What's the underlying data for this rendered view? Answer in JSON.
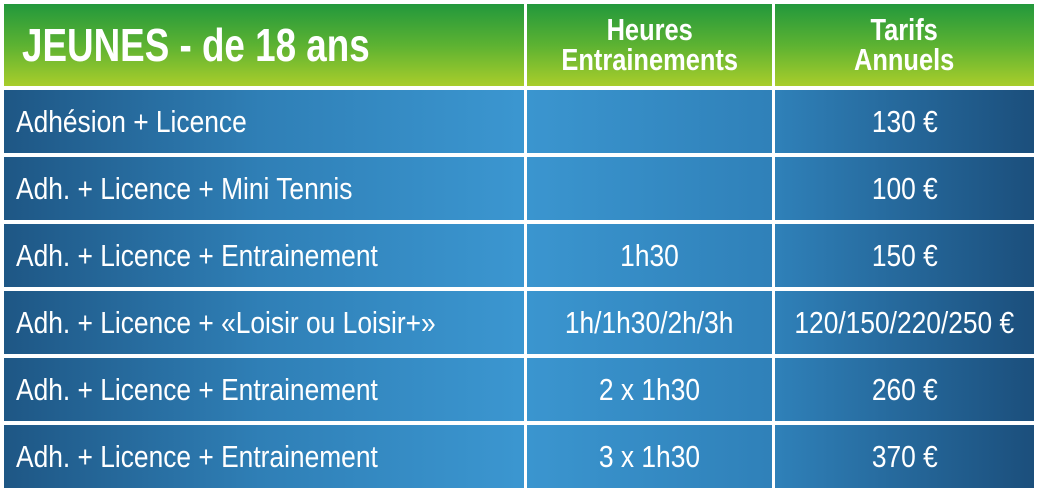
{
  "header": {
    "title": "JEUNES - de 18 ans",
    "col2": [
      "Heures",
      "Entrainements"
    ],
    "col3": [
      "Tarifs",
      "Annuels"
    ]
  },
  "rows": [
    {
      "label": "Adhésion + Licence",
      "hours": "",
      "price": "130 €"
    },
    {
      "label": "Adh. + Licence + Mini Tennis",
      "hours": "",
      "price": "100 €"
    },
    {
      "label": "Adh. + Licence + Entrainement",
      "hours": "1h30",
      "price": "150 €"
    },
    {
      "label": "Adh. + Licence + «Loisir ou Loisir+»",
      "hours": "1h/1h30/2h/3h",
      "price": "120/150/220/250 €"
    },
    {
      "label": "Adh. + Licence + Entrainement",
      "hours": "2 x 1h30",
      "price": "260 €"
    },
    {
      "label": "Adh. + Licence + Entrainement",
      "hours": "3 x 1h30",
      "price": "370 €"
    }
  ],
  "colors": {
    "header_top": "#22983c",
    "header_bottom": "#a9cd2b",
    "row_dark": "#1e5684",
    "row_light": "#3b96d0"
  }
}
